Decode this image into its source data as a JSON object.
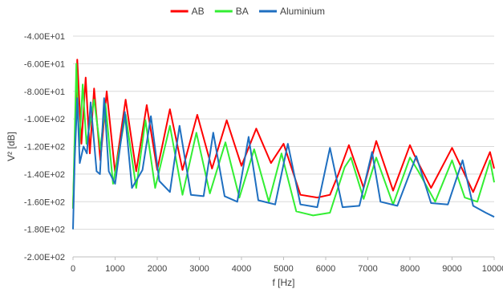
{
  "chart_data": {
    "type": "line",
    "title": "",
    "xlabel": "f [Hz]",
    "ylabel": "V² [dB]",
    "xlim": [
      0,
      10000
    ],
    "ylim": [
      -200,
      -40
    ],
    "x_ticks": [
      0,
      1000,
      2000,
      3000,
      4000,
      5000,
      6000,
      7000,
      8000,
      9000,
      10000
    ],
    "y_ticks": [
      -200,
      -180,
      -160,
      -140,
      -120,
      -100,
      -80,
      -60,
      -40
    ],
    "y_tick_labels": [
      "-2.00E+02",
      "-1.80E+02",
      "-1.60E+02",
      "-1.40E+02",
      "-1.20E+02",
      "-1.00E+02",
      "-8.00E+01",
      "-6.00E+01",
      "-4.00E+01"
    ],
    "grid": "horizontal",
    "legend_position": "top",
    "series": [
      {
        "name": "AB",
        "color": "#ff0000",
        "x": [
          0,
          100,
          200,
          300,
          400,
          500,
          650,
          800,
          1000,
          1250,
          1500,
          1750,
          2000,
          2300,
          2600,
          2950,
          3300,
          3650,
          4000,
          4350,
          4700,
          5000,
          5400,
          5800,
          6100,
          6300,
          6550,
          6900,
          7200,
          7600,
          8000,
          8100,
          8500,
          9000,
          9500,
          9900,
          10000
        ],
        "y": [
          -165,
          -57,
          -118,
          -70,
          -125,
          -78,
          -130,
          -80,
          -139,
          -86,
          -138,
          -90,
          -137,
          -93,
          -137,
          -97,
          -136,
          -101,
          -134,
          -107,
          -132,
          -118,
          -155,
          -157,
          -155,
          -140,
          -119,
          -150,
          -116,
          -152,
          -119,
          -126,
          -150,
          -121,
          -153,
          -124,
          -136
        ]
      },
      {
        "name": "BA",
        "color": "#33ee33",
        "x": [
          0,
          80,
          150,
          230,
          320,
          500,
          650,
          770,
          950,
          1250,
          1500,
          1720,
          1950,
          2300,
          2600,
          2930,
          3250,
          3620,
          3950,
          4300,
          4650,
          4950,
          5300,
          5700,
          6100,
          6450,
          6600,
          6900,
          7200,
          7600,
          8000,
          8200,
          8600,
          9000,
          9300,
          9600,
          9900,
          10000
        ],
        "y": [
          -165,
          -60,
          -120,
          -75,
          -118,
          -86,
          -122,
          -89,
          -147,
          -97,
          -150,
          -101,
          -150,
          -105,
          -155,
          -110,
          -154,
          -117,
          -157,
          -122,
          -160,
          -125,
          -167,
          -170,
          -168,
          -135,
          -128,
          -158,
          -128,
          -162,
          -128,
          -138,
          -160,
          -130,
          -157,
          -160,
          -130,
          -146
        ]
      },
      {
        "name": "Aluminium",
        "color": "#1f6fc0",
        "x": [
          0,
          40,
          100,
          160,
          250,
          330,
          420,
          560,
          640,
          740,
          850,
          1000,
          1230,
          1400,
          1650,
          1850,
          2050,
          2300,
          2530,
          2800,
          3100,
          3330,
          3600,
          3900,
          4170,
          4400,
          4800,
          5100,
          5400,
          5800,
          6100,
          6400,
          6800,
          7100,
          7300,
          7700,
          8150,
          8500,
          8900,
          9250,
          9500,
          9800,
          10000
        ],
        "y": [
          -180,
          -130,
          -85,
          -132,
          -120,
          -125,
          -88,
          -138,
          -140,
          -85,
          -138,
          -147,
          -95,
          -150,
          -137,
          -98,
          -145,
          -153,
          -105,
          -155,
          -156,
          -110,
          -156,
          -160,
          -113,
          -159,
          -162,
          -118,
          -162,
          -164,
          -121,
          -164,
          -163,
          -124,
          -160,
          -163,
          -127,
          -161,
          -162,
          -130,
          -163,
          -168,
          -171
        ]
      }
    ]
  }
}
